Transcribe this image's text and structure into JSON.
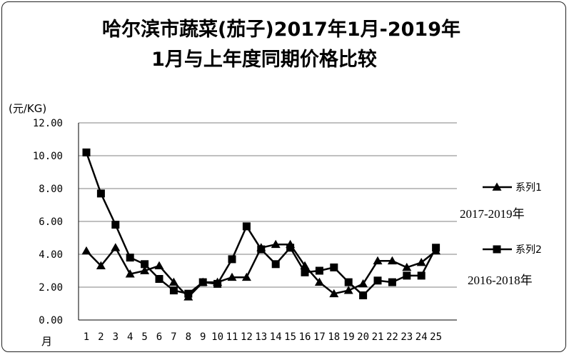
{
  "chart_data": {
    "type": "line",
    "title_line1": "哈尔滨市蔬菜(茄子)2017年1月-2019年",
    "title_line2": "1月与上年度同期价格比较",
    "ylabel": "(元/KG)",
    "xlabel": "月",
    "ylim": [
      0,
      12
    ],
    "yticks": [
      "0.00",
      "2.00",
      "4.00",
      "6.00",
      "8.00",
      "10.00",
      "12.00"
    ],
    "x": [
      1,
      2,
      3,
      4,
      5,
      6,
      7,
      8,
      9,
      10,
      11,
      12,
      13,
      14,
      15,
      16,
      17,
      18,
      19,
      20,
      21,
      22,
      23,
      24,
      25
    ],
    "grid": true,
    "legend_position": "right",
    "series": [
      {
        "name": "系列1",
        "marker": "triangle",
        "note": "2017-2019年",
        "values": [
          4.2,
          3.3,
          4.4,
          2.8,
          3.0,
          3.3,
          2.3,
          1.4,
          2.3,
          2.3,
          2.6,
          2.6,
          4.4,
          4.6,
          4.6,
          3.3,
          2.3,
          1.6,
          1.8,
          2.2,
          3.6,
          3.6,
          3.2,
          3.5,
          4.2
        ]
      },
      {
        "name": "系列2",
        "marker": "square",
        "note": "2016-2018年",
        "values": [
          10.2,
          7.7,
          5.8,
          3.8,
          3.4,
          2.5,
          1.8,
          1.6,
          2.3,
          2.2,
          3.7,
          5.7,
          4.3,
          3.4,
          4.4,
          2.9,
          3.0,
          3.2,
          2.3,
          1.5,
          2.4,
          2.3,
          2.7,
          2.7,
          4.4
        ]
      }
    ]
  },
  "colors": {
    "line": "#000000",
    "grid": "#808080"
  }
}
